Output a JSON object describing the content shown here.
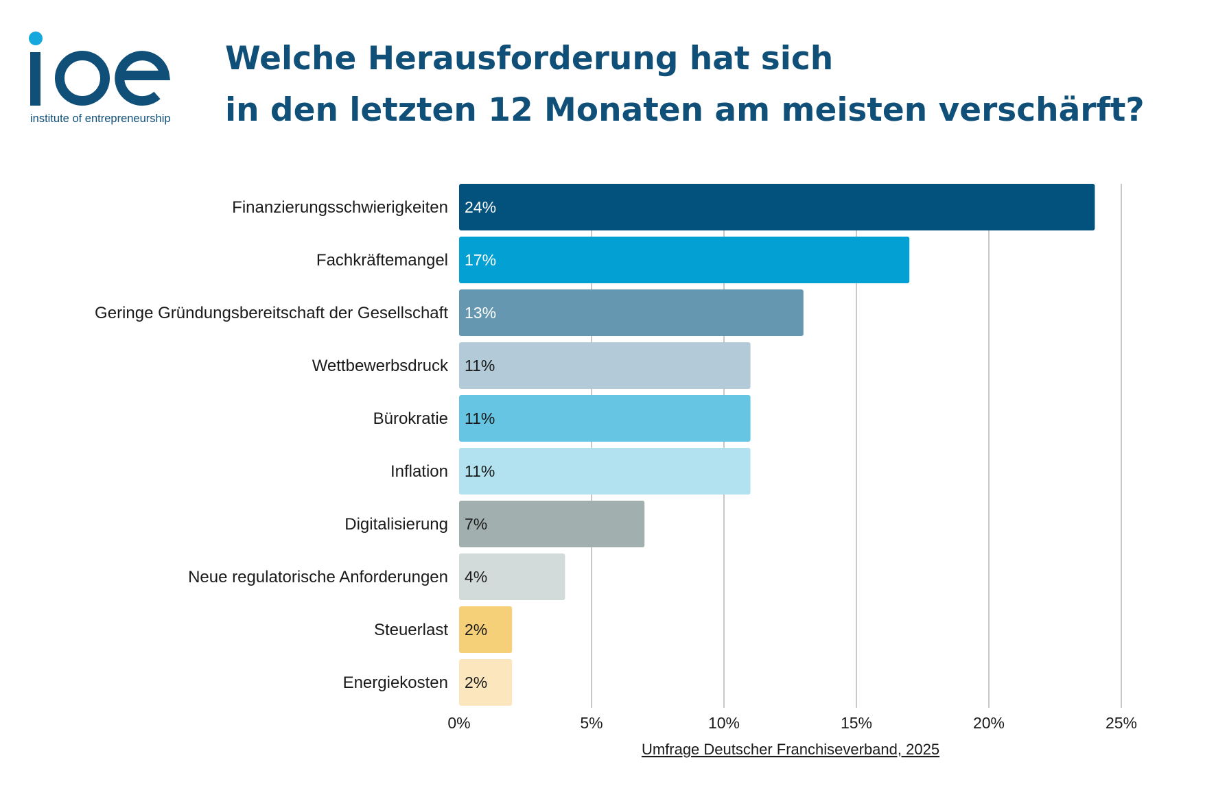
{
  "logo": {
    "wordmark": "ioe",
    "tagline": "institute of entrepreneurship",
    "primary_color": "#0f4f78",
    "accent_color": "#15a8dd"
  },
  "title_lines": [
    "Welche Herausforderung hat sich",
    "in den letzten 12 Monaten am meisten verschärft?"
  ],
  "source": "Umfrage Deutscher Franchiseverband, 2025",
  "chart_data": {
    "type": "bar",
    "orientation": "horizontal",
    "title": "Welche Herausforderung hat sich in den letzten 12 Monaten am meisten verschärft?",
    "xlabel": "",
    "ylabel": "",
    "xlim": [
      0,
      25
    ],
    "ticks": [
      0,
      5,
      10,
      15,
      20,
      25
    ],
    "tick_labels": [
      "0%",
      "5%",
      "10%",
      "15%",
      "20%",
      "25%"
    ],
    "grid": "vertical",
    "legend": "none",
    "categories": [
      "Finanzierungsschwierigkeiten",
      "Fachkräftemangel",
      "Geringe Gründungsbereitschaft der Gesellschaft",
      "Wettbewerbsdruck",
      "Bürokratie",
      "Inflation",
      "Digitalisierung",
      "Neue regulatorische Anforderungen",
      "Steuerlast",
      "Energiekosten"
    ],
    "values": [
      24,
      17,
      13,
      11,
      11,
      11,
      7,
      4,
      2,
      2
    ],
    "value_labels": [
      "24%",
      "17%",
      "13%",
      "11%",
      "11%",
      "11%",
      "7%",
      "4%",
      "2%",
      "2%"
    ],
    "colors": [
      "#02527d",
      "#03a0d3",
      "#6597b0",
      "#b3cbd8",
      "#66c5e2",
      "#b2e2ef",
      "#a1b0ae",
      "#d3dbda",
      "#f6cf79",
      "#fbe6bd"
    ],
    "value_label_colors": [
      "#ffffff",
      "#ffffff",
      "#ffffff",
      "#1a1a1a",
      "#1a1a1a",
      "#1a1a1a",
      "#1a1a1a",
      "#1a1a1a",
      "#1a1a1a",
      "#1a1a1a"
    ],
    "grid_color": "#c8c8c8"
  }
}
